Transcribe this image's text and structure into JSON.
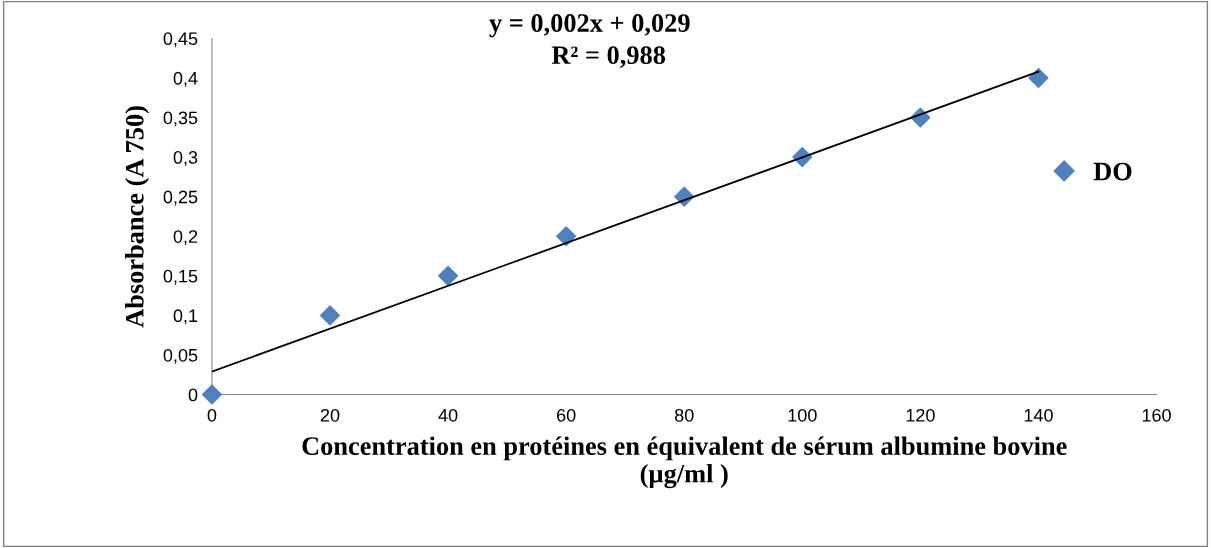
{
  "chart_data": {
    "type": "scatter",
    "xlabel": "Concentration en protéines en équivalent de sérum albumine bovine\n(µg/ml )",
    "ylabel": "Absorbance (A 750)",
    "x": [
      0,
      20,
      40,
      60,
      80,
      100,
      120,
      140
    ],
    "series": [
      {
        "name": "DO",
        "color": "#4f81bd",
        "marker": "diamond",
        "values": [
          0,
          0.1,
          0.15,
          0.2,
          0.25,
          0.3,
          0.35,
          0.4
        ]
      },
      {
        "type": "line",
        "color": "#000000",
        "x": [
          0,
          140
        ],
        "values": [
          0.029,
          0.408
        ],
        "marker": "none",
        "line_style": "solid"
      }
    ],
    "annotations": [
      "y = 0,002x + 0,029",
      "R² = 0,988"
    ],
    "xlim": [
      0,
      160
    ],
    "xticks": [
      0,
      20,
      40,
      60,
      80,
      100,
      120,
      140,
      160
    ],
    "ylim": [
      0,
      0.45
    ],
    "yticks": [
      0,
      {
        "value": 0.05,
        "label": "0,05"
      },
      {
        "value": 0.1,
        "label": "0,1"
      },
      {
        "value": 0.15,
        "label": "0,15"
      },
      {
        "value": 0.2,
        "label": "0,2"
      },
      {
        "value": 0.25,
        "label": "0,25"
      },
      {
        "value": 0.3,
        "label": "0,3"
      },
      {
        "value": 0.35,
        "label": "0,35"
      },
      {
        "value": 0.4,
        "label": "0,4"
      },
      {
        "value": 0.45,
        "label": "0,45"
      }
    ],
    "grid": false,
    "legend": "right"
  }
}
